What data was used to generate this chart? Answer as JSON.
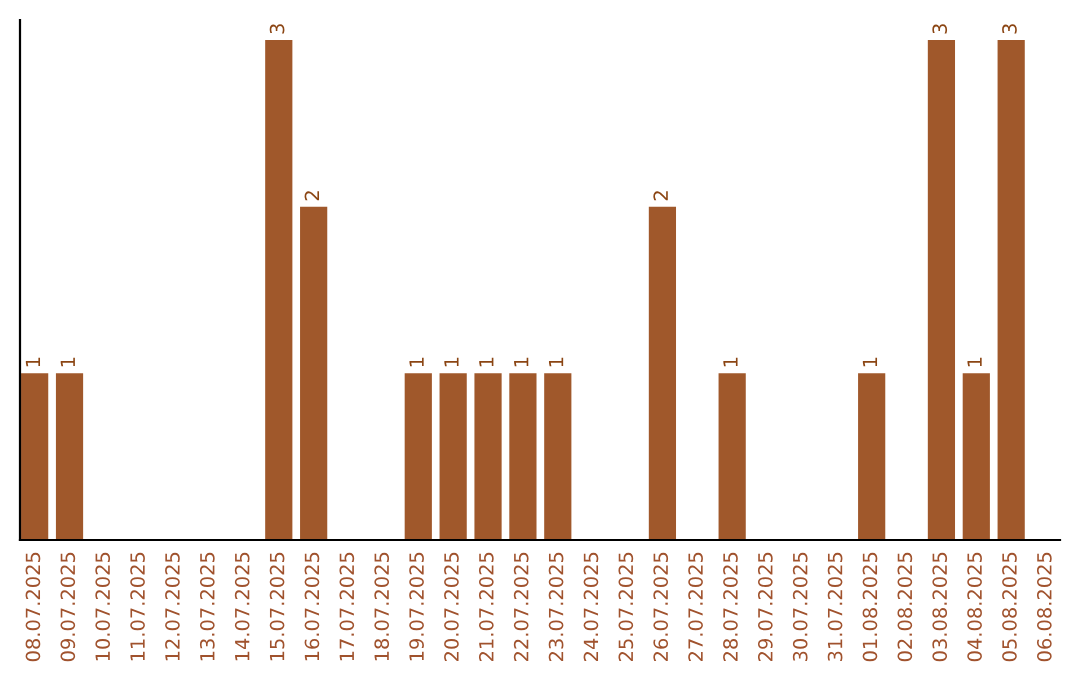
{
  "chart_data": {
    "type": "bar",
    "categories": [
      "08.07.2025",
      "09.07.2025",
      "10.07.2025",
      "11.07.2025",
      "12.07.2025",
      "13.07.2025",
      "14.07.2025",
      "15.07.2025",
      "16.07.2025",
      "17.07.2025",
      "18.07.2025",
      "19.07.2025",
      "20.07.2025",
      "21.07.2025",
      "22.07.2025",
      "23.07.2025",
      "24.07.2025",
      "25.07.2025",
      "26.07.2025",
      "27.07.2025",
      "28.07.2025",
      "29.07.2025",
      "30.07.2025",
      "31.07.2025",
      "01.08.2025",
      "02.08.2025",
      "03.08.2025",
      "04.08.2025",
      "05.08.2025",
      "06.08.2025"
    ],
    "values": [
      1,
      1,
      0,
      0,
      0,
      0,
      0,
      3,
      2,
      0,
      0,
      1,
      1,
      1,
      1,
      1,
      0,
      0,
      2,
      0,
      1,
      0,
      0,
      0,
      1,
      0,
      3,
      1,
      3,
      0
    ],
    "value_labels": [
      "1",
      "1",
      null,
      null,
      null,
      null,
      null,
      "3",
      "2",
      null,
      null,
      "1",
      "1",
      "1",
      "1",
      "1",
      null,
      null,
      "2",
      null,
      "1",
      null,
      null,
      null,
      "1",
      null,
      "3",
      "1",
      "3",
      null
    ],
    "color": "#a0582b",
    "ylim": [
      0,
      3.12
    ],
    "tick_labels": "x",
    "grid": false,
    "legend": false
  }
}
